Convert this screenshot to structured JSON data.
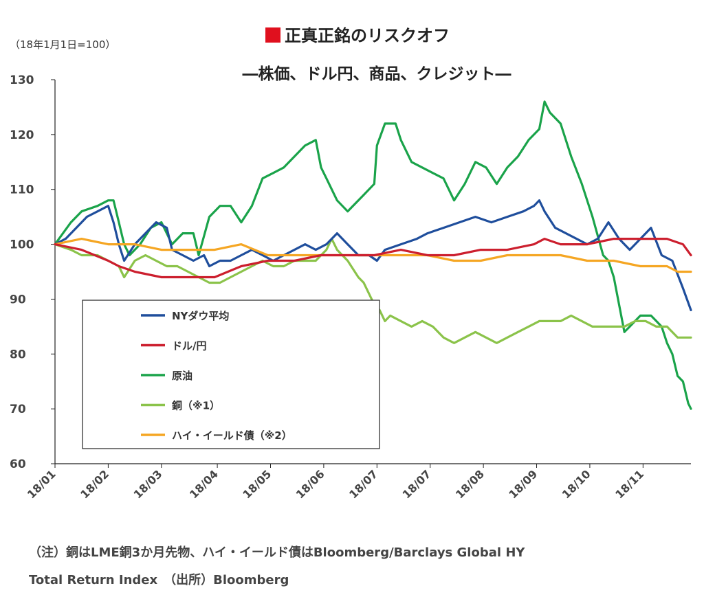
{
  "chart_data": {
    "type": "line",
    "title": "正真正銘のリスクオフ",
    "subtitle": "―株価、ドル円、商品、クレジット―",
    "unit_label": "（18年1月1日=100）",
    "ylim": [
      60,
      130
    ],
    "yticks": [
      130,
      120,
      110,
      100,
      90,
      80,
      70,
      60
    ],
    "x_range": [
      0,
      239
    ],
    "x_ticks": [
      {
        "x": 0,
        "label": "18/01"
      },
      {
        "x": 20,
        "label": "18/02"
      },
      {
        "x": 40,
        "label": "18/03"
      },
      {
        "x": 61,
        "label": "18/04"
      },
      {
        "x": 81,
        "label": "18/05"
      },
      {
        "x": 101,
        "label": "18/06"
      },
      {
        "x": 121,
        "label": "18/07"
      },
      {
        "x": 141,
        "label": "18/07"
      },
      {
        "x": 161,
        "label": "18/08"
      },
      {
        "x": 181,
        "label": "18/09"
      },
      {
        "x": 201,
        "label": "18/10"
      },
      {
        "x": 221,
        "label": "18/11"
      }
    ],
    "grid": false,
    "legend_position": "bottom-left",
    "series": [
      {
        "name": "NYダウ平均",
        "color": "#1f4e9c",
        "x": [
          0,
          4,
          8,
          12,
          16,
          20,
          22,
          24,
          26,
          30,
          34,
          38,
          42,
          44,
          48,
          52,
          56,
          58,
          62,
          66,
          70,
          74,
          78,
          82,
          86,
          90,
          94,
          98,
          102,
          106,
          110,
          114,
          118,
          121,
          124,
          130,
          136,
          140,
          146,
          152,
          158,
          164,
          170,
          176,
          180,
          182,
          184,
          188,
          192,
          196,
          200,
          204,
          208,
          212,
          216,
          220,
          224,
          228,
          232,
          236,
          239
        ],
        "y": [
          100,
          101,
          103,
          105,
          106,
          107,
          104,
          100,
          97,
          100,
          102,
          104,
          103,
          99,
          98,
          97,
          98,
          96,
          97,
          97,
          98,
          99,
          98,
          97,
          98,
          99,
          100,
          99,
          100,
          102,
          100,
          98,
          98,
          97,
          99,
          100,
          101,
          102,
          103,
          104,
          105,
          104,
          105,
          106,
          107,
          108,
          106,
          103,
          102,
          101,
          100,
          101,
          104,
          101,
          99,
          101,
          103,
          98,
          97,
          92,
          88
        ]
      },
      {
        "name": "ドル/円",
        "color": "#cc1f2e",
        "x": [
          0,
          10,
          20,
          24,
          30,
          40,
          50,
          60,
          70,
          80,
          90,
          100,
          110,
          120,
          130,
          140,
          150,
          160,
          170,
          180,
          184,
          190,
          200,
          210,
          220,
          230,
          236,
          239
        ],
        "y": [
          100,
          99,
          97,
          96,
          95,
          94,
          94,
          94,
          96,
          97,
          97,
          98,
          98,
          98,
          99,
          98,
          98,
          99,
          99,
          100,
          101,
          100,
          100,
          101,
          101,
          101,
          100,
          98
        ]
      },
      {
        "name": "原油",
        "color": "#1aa34a",
        "x": [
          0,
          6,
          10,
          16,
          20,
          22,
          24,
          26,
          28,
          32,
          36,
          40,
          44,
          48,
          52,
          54,
          58,
          62,
          66,
          70,
          74,
          78,
          82,
          86,
          90,
          94,
          98,
          100,
          102,
          106,
          110,
          116,
          120,
          121,
          124,
          128,
          130,
          134,
          138,
          142,
          146,
          150,
          154,
          158,
          162,
          166,
          170,
          174,
          178,
          182,
          184,
          186,
          190,
          194,
          198,
          202,
          206,
          208,
          210,
          212,
          214,
          216,
          218,
          220,
          224,
          226,
          228,
          230,
          232,
          234,
          236,
          238,
          239
        ],
        "y": [
          100,
          104,
          106,
          107,
          108,
          108,
          104,
          100,
          98,
          100,
          103,
          104,
          100,
          102,
          102,
          98,
          105,
          107,
          107,
          104,
          107,
          112,
          113,
          114,
          116,
          118,
          119,
          114,
          112,
          108,
          106,
          109,
          111,
          118,
          122,
          122,
          119,
          115,
          114,
          113,
          112,
          108,
          111,
          115,
          114,
          111,
          114,
          116,
          119,
          121,
          126,
          124,
          122,
          116,
          111,
          105,
          98,
          97,
          94,
          89,
          84,
          85,
          86,
          87,
          87,
          86,
          85,
          82,
          80,
          76,
          75,
          71,
          70
        ]
      },
      {
        "name": "銅（※1）",
        "color": "#8bc34a",
        "x": [
          0,
          6,
          10,
          16,
          20,
          24,
          26,
          30,
          34,
          38,
          42,
          46,
          50,
          54,
          58,
          62,
          66,
          70,
          74,
          78,
          82,
          86,
          90,
          94,
          98,
          100,
          102,
          104,
          106,
          110,
          114,
          116,
          118,
          120,
          122,
          124,
          126,
          130,
          134,
          138,
          142,
          146,
          150,
          154,
          158,
          162,
          166,
          170,
          174,
          178,
          182,
          186,
          190,
          194,
          198,
          202,
          206,
          210,
          214,
          218,
          222,
          226,
          230,
          234,
          239
        ],
        "y": [
          100,
          99,
          98,
          98,
          97,
          96,
          94,
          97,
          98,
          97,
          96,
          96,
          95,
          94,
          93,
          93,
          94,
          95,
          96,
          97,
          96,
          96,
          97,
          97,
          97,
          98,
          99,
          101,
          99,
          97,
          94,
          93,
          91,
          89,
          88,
          86,
          87,
          86,
          85,
          86,
          85,
          83,
          82,
          83,
          84,
          83,
          82,
          83,
          84,
          85,
          86,
          86,
          86,
          87,
          86,
          85,
          85,
          85,
          85,
          86,
          86,
          85,
          85,
          83,
          83
        ]
      },
      {
        "name": "ハイ・イールド債（※2）",
        "color": "#f5a623",
        "x": [
          0,
          10,
          20,
          30,
          40,
          50,
          60,
          70,
          80,
          90,
          100,
          110,
          120,
          130,
          140,
          150,
          160,
          170,
          180,
          190,
          200,
          210,
          220,
          226,
          230,
          234,
          236,
          239
        ],
        "y": [
          100,
          101,
          100,
          100,
          99,
          99,
          99,
          100,
          98,
          98,
          98,
          98,
          98,
          98,
          98,
          97,
          97,
          98,
          98,
          98,
          97,
          97,
          96,
          96,
          96,
          95,
          95,
          95
        ]
      }
    ]
  },
  "notes": {
    "line1": "（注）銅はLME銅3か月先物、ハイ・イールド債はBloomberg/Barclays Global HY",
    "line2": "Total Return Index　（出所）Bloomberg"
  }
}
